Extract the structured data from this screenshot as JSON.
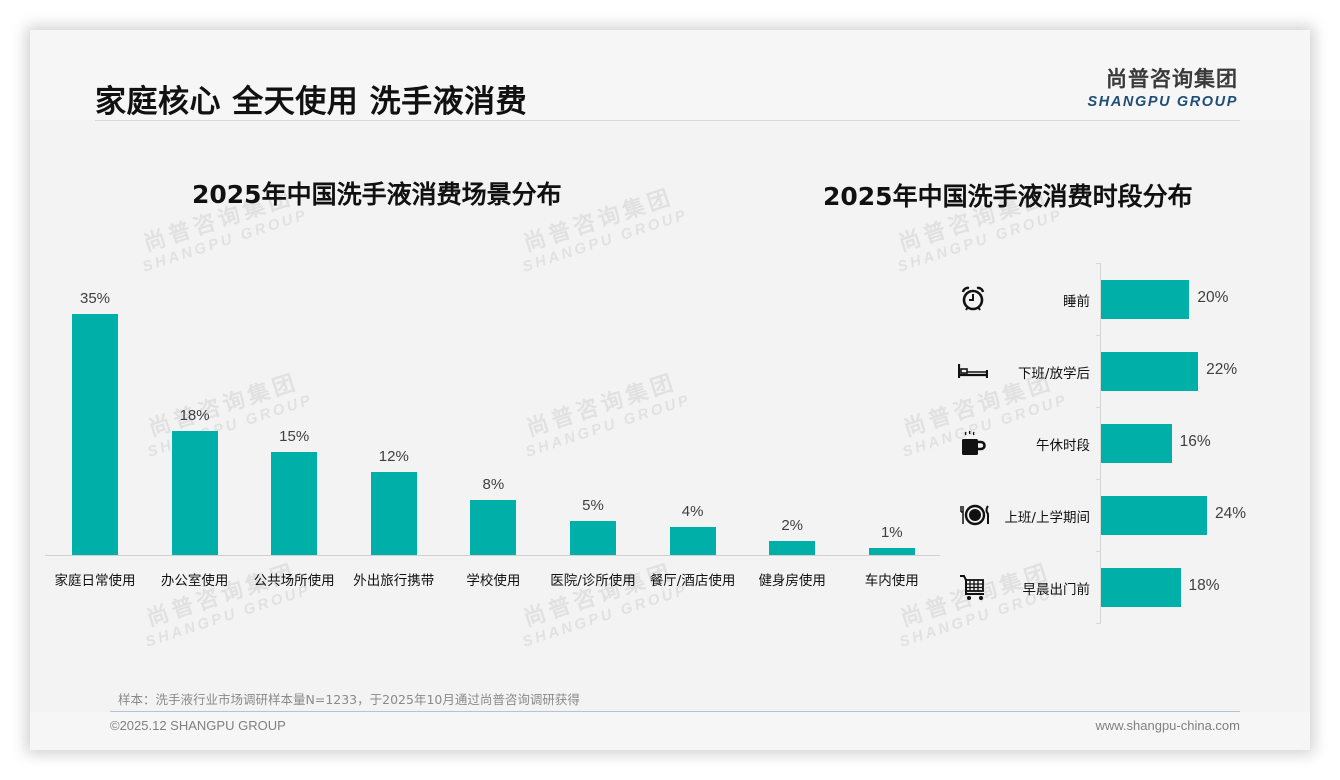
{
  "header": {
    "title": "家庭核心 全天使用 洗手液消费",
    "logo_cn": "尚普咨询集团",
    "logo_en": "SHANGPU GROUP"
  },
  "watermark": {
    "cn": "尚普咨询集团",
    "en": "SHANGPU GROUP"
  },
  "colors": {
    "bar": "#00b0a8",
    "logo_en": "#1f4e79",
    "background": "#f3f3f3"
  },
  "chart_data": [
    {
      "type": "bar",
      "title": "2025年中国洗手液消费场景分布",
      "categories": [
        "家庭日常使用",
        "办公室使用",
        "公共场所使用",
        "外出旅行携带",
        "学校使用",
        "医院/诊所使用",
        "餐厅/酒店使用",
        "健身房使用",
        "车内使用"
      ],
      "values": [
        35,
        18,
        15,
        12,
        8,
        5,
        4,
        2,
        1
      ],
      "value_labels": [
        "35%",
        "18%",
        "15%",
        "12%",
        "8%",
        "5%",
        "4%",
        "2%",
        "1%"
      ],
      "unit": "%",
      "xlabel": "",
      "ylabel": "",
      "ylim": [
        0,
        35
      ],
      "grid": false,
      "legend": "none",
      "orientation": "vertical"
    },
    {
      "type": "bar",
      "title": "2025年中国洗手液消费时段分布",
      "categories": [
        "睡前",
        "下班/放学后",
        "午休时段",
        "上班/上学期间",
        "早晨出门前"
      ],
      "values": [
        20,
        22,
        16,
        24,
        18
      ],
      "value_labels": [
        "20%",
        "22%",
        "16%",
        "24%",
        "18%"
      ],
      "icons": [
        "alarm-clock-icon",
        "bed-icon",
        "coffee-cup-icon",
        "plate-cutlery-icon",
        "shopping-cart-icon"
      ],
      "unit": "%",
      "xlabel": "",
      "ylabel": "",
      "xlim": [
        0,
        24
      ],
      "grid": false,
      "legend": "none",
      "orientation": "horizontal"
    }
  ],
  "footer": {
    "note": "样本：洗手液行业市场调研样本量N=1233，于2025年10月通过尚普咨询调研获得",
    "copyright": "©2025.12 SHANGPU GROUP",
    "website": "www.shangpu-china.com"
  }
}
